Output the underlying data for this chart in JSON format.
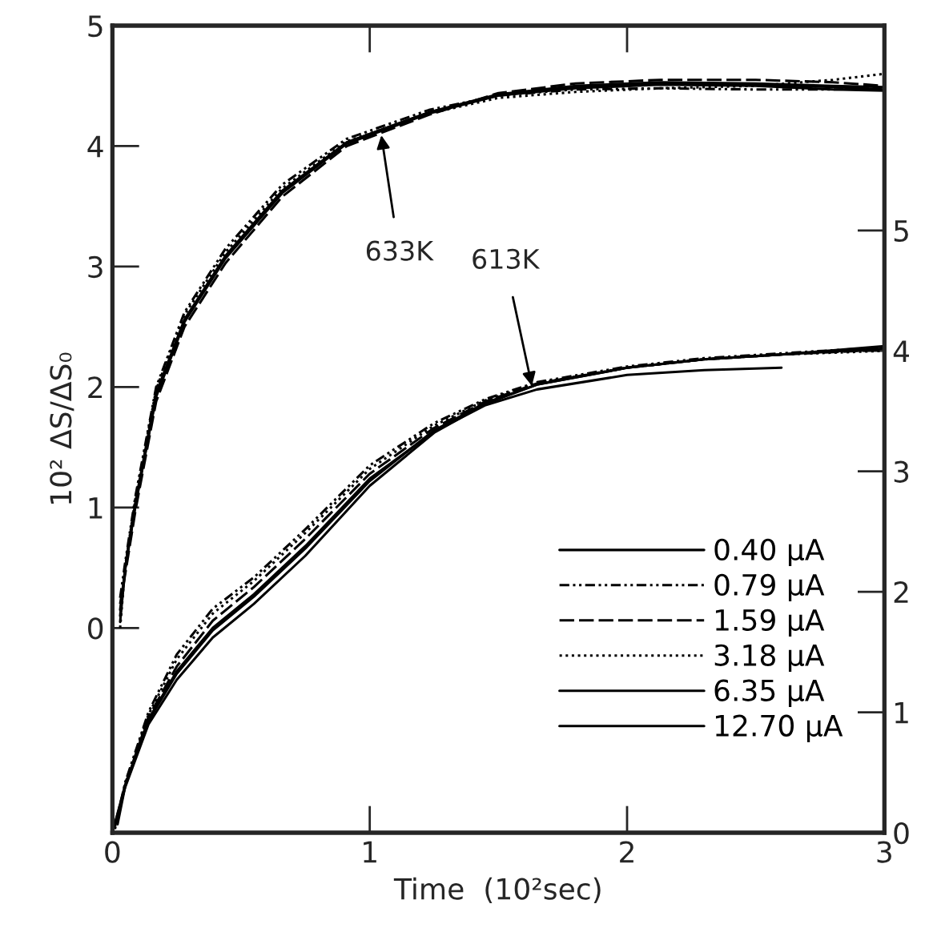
{
  "chart_data": {
    "type": "line",
    "xlabel": "Time  (10²sec)",
    "ylabel": "10² ΔS/ΔS₀",
    "xlim": [
      0,
      3
    ],
    "xticks": [
      0,
      1,
      2,
      3
    ],
    "ylim": [
      -1.7,
      5
    ],
    "yticks": [
      0,
      1,
      2,
      3,
      4,
      5
    ],
    "y2lim": [
      0,
      6.7
    ],
    "y2ticks": [
      0,
      1,
      2,
      3,
      4,
      5
    ],
    "grid": false,
    "legend": "lower right",
    "marker": "none",
    "annotations": [
      {
        "text": "633K",
        "x": 1.045,
        "y": 4.09
      },
      {
        "text": "613K",
        "x": 1.63,
        "y": 2.01
      }
    ],
    "series": [
      {
        "name": "0.40 μA",
        "color": "#000000",
        "line_style": "solid",
        "x": [
          0.03,
          0.05,
          0.09,
          0.17,
          0.28,
          0.44,
          0.66,
          0.91,
          1.23,
          1.5,
          1.8,
          2.13,
          2.5,
          2.8,
          3.0
        ],
        "values": [
          0.05,
          0.5,
          1.05,
          1.95,
          2.56,
          3.09,
          3.63,
          4.03,
          4.28,
          4.43,
          4.5,
          4.53,
          4.52,
          4.5,
          4.49
        ]
      },
      {
        "name": "0.79 μA",
        "color": "#000000",
        "line_style": "dashdot",
        "x": [
          0.03,
          0.05,
          0.09,
          0.17,
          0.28,
          0.44,
          0.66,
          0.91,
          1.23,
          1.5,
          1.8,
          2.13,
          2.5,
          2.8,
          3.0
        ],
        "values": [
          0.25,
          0.55,
          1.1,
          2.0,
          2.62,
          3.15,
          3.68,
          4.06,
          4.3,
          4.42,
          4.47,
          4.48,
          4.47,
          4.47,
          4.48
        ]
      },
      {
        "name": "1.59 μA",
        "color": "#000000",
        "line_style": "dashed",
        "x": [
          0.03,
          0.05,
          0.09,
          0.17,
          0.28,
          0.44,
          0.66,
          0.91,
          1.23,
          1.5,
          1.8,
          2.13,
          2.5,
          2.8,
          3.0
        ],
        "values": [
          0.2,
          0.45,
          0.98,
          1.88,
          2.5,
          3.03,
          3.58,
          4.0,
          4.26,
          4.44,
          4.52,
          4.55,
          4.55,
          4.53,
          4.5
        ]
      },
      {
        "name": "3.18 μA",
        "color": "#000000",
        "line_style": "dotted",
        "x": [
          0.03,
          0.05,
          0.09,
          0.17,
          0.28,
          0.44,
          0.66,
          0.91,
          1.23,
          1.5,
          1.8,
          2.13,
          2.5,
          2.8,
          3.0
        ],
        "values": [
          0.0,
          0.52,
          1.08,
          1.98,
          2.6,
          3.12,
          3.65,
          4.04,
          4.27,
          4.4,
          4.45,
          4.48,
          4.5,
          4.55,
          4.6
        ]
      },
      {
        "name": "6.35 μA",
        "color": "#000000",
        "line_style": "solid",
        "x": [
          0.03,
          0.05,
          0.09,
          0.17,
          0.28,
          0.44,
          0.66,
          0.91,
          1.23,
          1.5,
          1.8,
          2.13,
          2.5,
          2.8,
          3.0
        ],
        "values": [
          0.15,
          0.5,
          1.03,
          1.93,
          2.55,
          3.08,
          3.62,
          4.03,
          4.28,
          4.42,
          4.49,
          4.52,
          4.51,
          4.49,
          4.47
        ]
      },
      {
        "name": "12.70 μA",
        "color": "#000000",
        "line_style": "solid",
        "x": [
          0.03,
          0.05,
          0.09,
          0.17,
          0.28,
          0.44,
          0.66,
          0.91,
          1.23,
          1.5,
          1.8,
          2.13,
          2.5,
          2.8,
          3.0
        ],
        "values": [
          0.1,
          0.49,
          1.02,
          1.92,
          2.54,
          3.07,
          3.61,
          4.02,
          4.27,
          4.42,
          4.48,
          4.51,
          4.5,
          4.47,
          4.46
        ]
      },
      {
        "color": "#000000",
        "line_style": "solid",
        "axis": "y2",
        "x": [
          0,
          0.05,
          0.14,
          0.25,
          0.39,
          0.55,
          0.75,
          1.0,
          1.25,
          1.45,
          1.65,
          2.0,
          2.3,
          2.6,
          3.0
        ],
        "values": [
          0,
          0.38,
          0.9,
          1.27,
          1.62,
          1.9,
          2.3,
          2.88,
          3.32,
          3.56,
          3.72,
          3.86,
          3.93,
          3.97,
          4.02
        ]
      },
      {
        "color": "#000000",
        "line_style": "dashdot",
        "axis": "y2",
        "x": [
          0.01,
          0.05,
          0.14,
          0.25,
          0.39,
          0.55,
          0.75,
          1.0,
          1.25,
          1.45,
          1.65,
          2.0,
          2.3,
          2.6,
          3.0
        ],
        "values": [
          0.05,
          0.42,
          1.0,
          1.48,
          1.86,
          2.12,
          2.52,
          3.05,
          3.4,
          3.6,
          3.74,
          3.87,
          3.94,
          3.98,
          4.03
        ]
      },
      {
        "color": "#000000",
        "line_style": "dashed",
        "axis": "y2",
        "x": [
          0.02,
          0.05,
          0.14,
          0.25,
          0.39,
          0.55,
          0.75,
          1.0,
          1.25,
          1.45,
          1.65,
          2.0,
          2.3,
          2.6,
          3.0
        ],
        "values": [
          0.1,
          0.4,
          0.96,
          1.38,
          1.76,
          2.04,
          2.44,
          2.98,
          3.36,
          3.58,
          3.73,
          3.86,
          3.93,
          3.97,
          4.01
        ]
      },
      {
        "color": "#000000",
        "line_style": "dotted",
        "axis": "y2",
        "x": [
          0.01,
          0.05,
          0.14,
          0.25,
          0.39,
          0.55,
          0.75,
          1.0,
          1.25,
          1.45,
          1.65,
          2.0,
          2.3,
          2.6,
          3.0
        ],
        "values": [
          0.03,
          0.41,
          0.98,
          1.44,
          1.82,
          2.09,
          2.49,
          3.02,
          3.38,
          3.59,
          3.73,
          3.86,
          3.93,
          3.97,
          4.0
        ]
      },
      {
        "color": "#000000",
        "line_style": "solid",
        "axis": "y2",
        "x": [
          0.02,
          0.05,
          0.14,
          0.25,
          0.39,
          0.55,
          0.75,
          1.0,
          1.25,
          1.45,
          1.65,
          2.0,
          2.3,
          2.6,
          3.0
        ],
        "values": [
          0.07,
          0.39,
          0.93,
          1.32,
          1.68,
          1.96,
          2.36,
          2.92,
          3.34,
          3.57,
          3.72,
          3.86,
          3.93,
          3.97,
          4.04
        ]
      },
      {
        "color": "#000000",
        "line_style": "solid",
        "axis": "y2",
        "x": [
          0.01,
          0.05,
          0.14,
          0.25,
          0.39,
          0.55,
          0.75,
          1.0,
          1.25,
          1.45,
          1.65,
          2.0,
          2.3,
          2.6
        ],
        "values": [
          0.08,
          0.4,
          0.94,
          1.34,
          1.7,
          1.98,
          2.38,
          2.94,
          3.33,
          3.55,
          3.68,
          3.8,
          3.84,
          3.86
        ]
      }
    ]
  }
}
